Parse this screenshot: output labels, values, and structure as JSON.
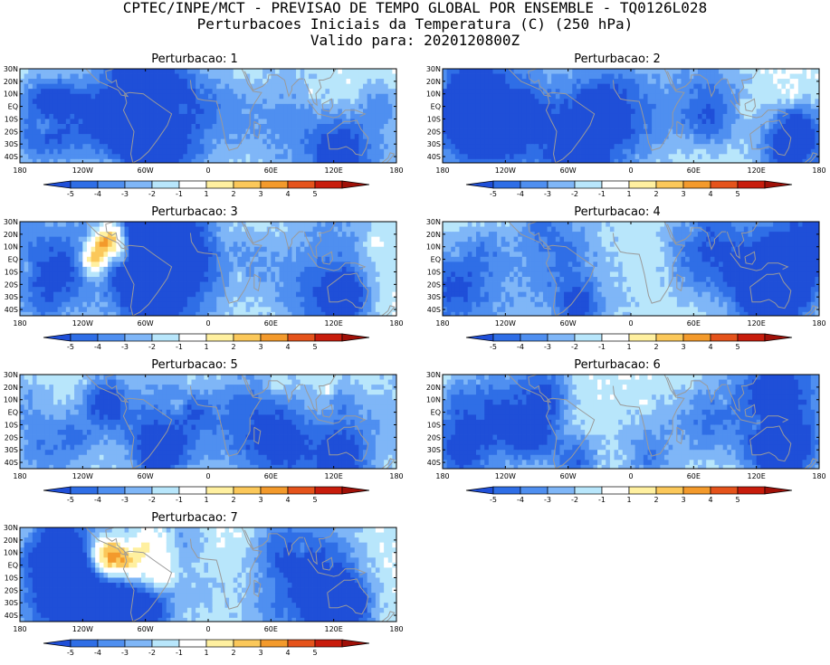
{
  "header": {
    "line1": "CPTEC/INPE/MCT - PREVISAO DE TEMPO GLOBAL POR ENSEMBLE - TQ0126L028",
    "line2": "Perturbacoes Iniciais da Temperatura (C) (250 hPa)",
    "line3": "Valido para: 2020120800Z"
  },
  "map": {
    "lat_ticks": [
      "30N",
      "20N",
      "10N",
      "EQ",
      "10S",
      "20S",
      "30S",
      "40S"
    ],
    "lon_ticks": [
      "180",
      "120W",
      "60W",
      "0",
      "60E",
      "120E",
      "180"
    ],
    "lat_range": [
      -45,
      30
    ],
    "lon_range": [
      -180,
      180
    ]
  },
  "colorbar": {
    "labels": [
      "-5",
      "-4",
      "-3",
      "-2",
      "-1",
      "1",
      "2",
      "3",
      "4",
      "5"
    ],
    "colors": [
      "#1f4fd8",
      "#2f6ee6",
      "#4f8ff0",
      "#7fb6f7",
      "#b8e6fb",
      "#ffffff",
      "#fff0a0",
      "#fbc85a",
      "#f39a2c",
      "#e5531b",
      "#c81c0c",
      "#a01008"
    ],
    "levels": [
      -5,
      -4,
      -3,
      -2,
      -1,
      1,
      2,
      3,
      4,
      5
    ]
  },
  "panels": [
    {
      "title": "Perturbacao: 1",
      "seed": 11,
      "warm": []
    },
    {
      "title": "Perturbacao: 2",
      "seed": 23,
      "warm": []
    },
    {
      "title": "Perturbacao: 3",
      "seed": 37,
      "warm": [
        [
          -110,
          -45,
          20,
          -10
        ]
      ]
    },
    {
      "title": "Perturbacao: 4",
      "seed": 41,
      "warm": []
    },
    {
      "title": "Perturbacao: 5",
      "seed": 53,
      "warm": []
    },
    {
      "title": "Perturbacao: 6",
      "seed": 67,
      "warm": []
    },
    {
      "title": "Perturbacao: 7",
      "seed": 79,
      "warm": [
        [
          -110,
          -45,
          20,
          -10
        ]
      ]
    }
  ]
}
